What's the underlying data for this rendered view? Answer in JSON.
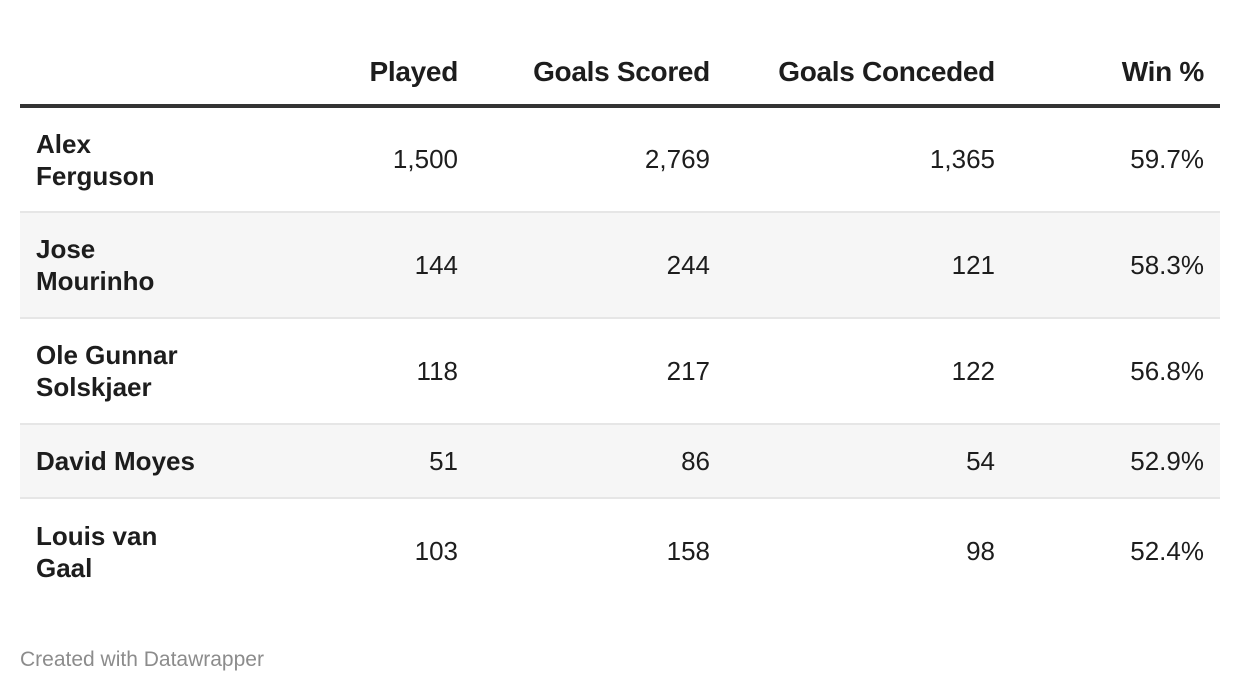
{
  "chart_data": {
    "type": "table",
    "columns": [
      "",
      "Played",
      "Goals Scored",
      "Goals Conceded",
      "Win %"
    ],
    "rows": [
      {
        "name_line1": "Alex",
        "name_line2": "Ferguson",
        "played": "1,500",
        "scored": "2,769",
        "conceded": "1,365",
        "win": "59.7%"
      },
      {
        "name_line1": "Jose",
        "name_line2": "Mourinho",
        "played": "144",
        "scored": "244",
        "conceded": "121",
        "win": "58.3%"
      },
      {
        "name_line1": "Ole Gunnar",
        "name_line2": "Solskjaer",
        "played": "118",
        "scored": "217",
        "conceded": "122",
        "win": "56.8%"
      },
      {
        "name_line1": "David Moyes",
        "name_line2": "",
        "played": "51",
        "scored": "86",
        "conceded": "54",
        "win": "52.9%"
      },
      {
        "name_line1": "Louis van",
        "name_line2": "Gaal",
        "played": "103",
        "scored": "158",
        "conceded": "98",
        "win": "52.4%"
      }
    ]
  },
  "footer": {
    "credit": "Created with Datawrapper"
  }
}
